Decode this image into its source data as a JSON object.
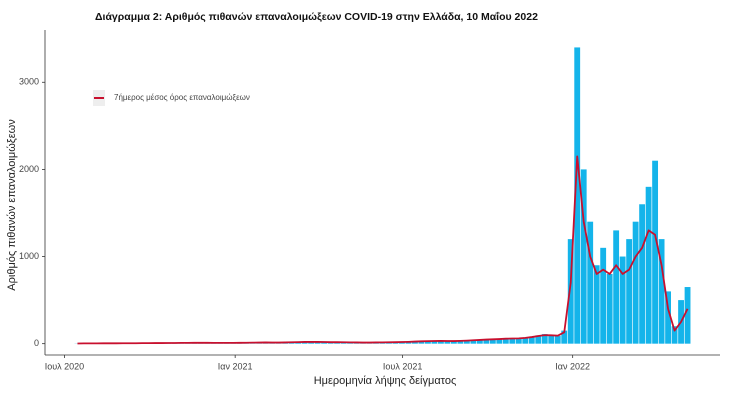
{
  "chart_data": {
    "type": "bar-line",
    "title": "Διάγραμμα 2: Αριθμός πιθανών επαναλοιμώξεων COVID-19 στην Ελλάδα, 10 Μαΐου 2022",
    "x_label": "Ημερομηνία λήψης δείγματος",
    "y_label": "Αριθμός πιθανών επαναλοιμώξεων",
    "categories": [
      null,
      null,
      null,
      null,
      null,
      null,
      null,
      null,
      null,
      null,
      null,
      null,
      null,
      null,
      null,
      null,
      null,
      null,
      null,
      null,
      null,
      null,
      null,
      null,
      null,
      null,
      null,
      null,
      null,
      null,
      null,
      null,
      null,
      null,
      null,
      null,
      null,
      null,
      null,
      null,
      null,
      null,
      null,
      null,
      null,
      null,
      null,
      null,
      null,
      null,
      null,
      null,
      null,
      null,
      null,
      null,
      null,
      null,
      null,
      null,
      null,
      null,
      null,
      null,
      null,
      null,
      null,
      null,
      null,
      null,
      null,
      null,
      null,
      null,
      null,
      null,
      null,
      null,
      null,
      null,
      null,
      null,
      null,
      null,
      null,
      null,
      null,
      null,
      null,
      null,
      null,
      null,
      null,
      null,
      null
    ],
    "color": "#14b4ea",
    "values": [
      2,
      3,
      3,
      4,
      3,
      5,
      4,
      5,
      6,
      5,
      6,
      7,
      8,
      8,
      7,
      9,
      10,
      9,
      12,
      10,
      11,
      9,
      8,
      10,
      9,
      10,
      12,
      11,
      13,
      15,
      14,
      12,
      13,
      16,
      18,
      20,
      22,
      20,
      19,
      17,
      16,
      18,
      15,
      14,
      13,
      12,
      14,
      15,
      16,
      18,
      20,
      22,
      25,
      28,
      30,
      32,
      35,
      30,
      28,
      32,
      36,
      40,
      45,
      48,
      50,
      55,
      60,
      58,
      62,
      70,
      80,
      95,
      110,
      100,
      90,
      150,
      1200,
      3400,
      2000,
      1400,
      900,
      1100,
      800,
      1300,
      1000,
      1200,
      1400,
      1600,
      1800,
      2100,
      1200,
      600,
      200,
      500,
      650
    ],
    "series": [
      {
        "name": "7ήμερος μέσος όρος επαναλοιμώξεων",
        "color": "#c8102e",
        "values": [
          2,
          3,
          3,
          3,
          4,
          4,
          4,
          5,
          5,
          5,
          6,
          6,
          7,
          7,
          8,
          8,
          9,
          9,
          10,
          10,
          10,
          9,
          9,
          9,
          9,
          10,
          11,
          12,
          13,
          14,
          13,
          13,
          14,
          16,
          18,
          20,
          20,
          20,
          19,
          17,
          17,
          16,
          15,
          14,
          13,
          13,
          14,
          15,
          16,
          17,
          19,
          21,
          24,
          27,
          29,
          31,
          32,
          31,
          30,
          32,
          35,
          39,
          43,
          47,
          50,
          53,
          57,
          59,
          61,
          67,
          76,
          88,
          98,
          96,
          92,
          130,
          700,
          2150,
          1400,
          1000,
          800,
          850,
          800,
          900,
          800,
          850,
          1000,
          1100,
          1300,
          1250,
          900,
          400,
          150,
          250,
          400
        ]
      }
    ],
    "xlim": [
      -5,
      99
    ],
    "xticks": [
      {
        "value": -2,
        "label": "Ιουλ 2020"
      },
      {
        "value": 24.3,
        "label": "Ιαν 2021"
      },
      {
        "value": 50.1,
        "label": "Ιουλ 2021"
      },
      {
        "value": 76.3,
        "label": "Ιαν 2022"
      }
    ],
    "ylim": [
      -130,
      3600
    ],
    "yticks": [
      0,
      1000,
      2000,
      3000
    ],
    "grid": false
  }
}
